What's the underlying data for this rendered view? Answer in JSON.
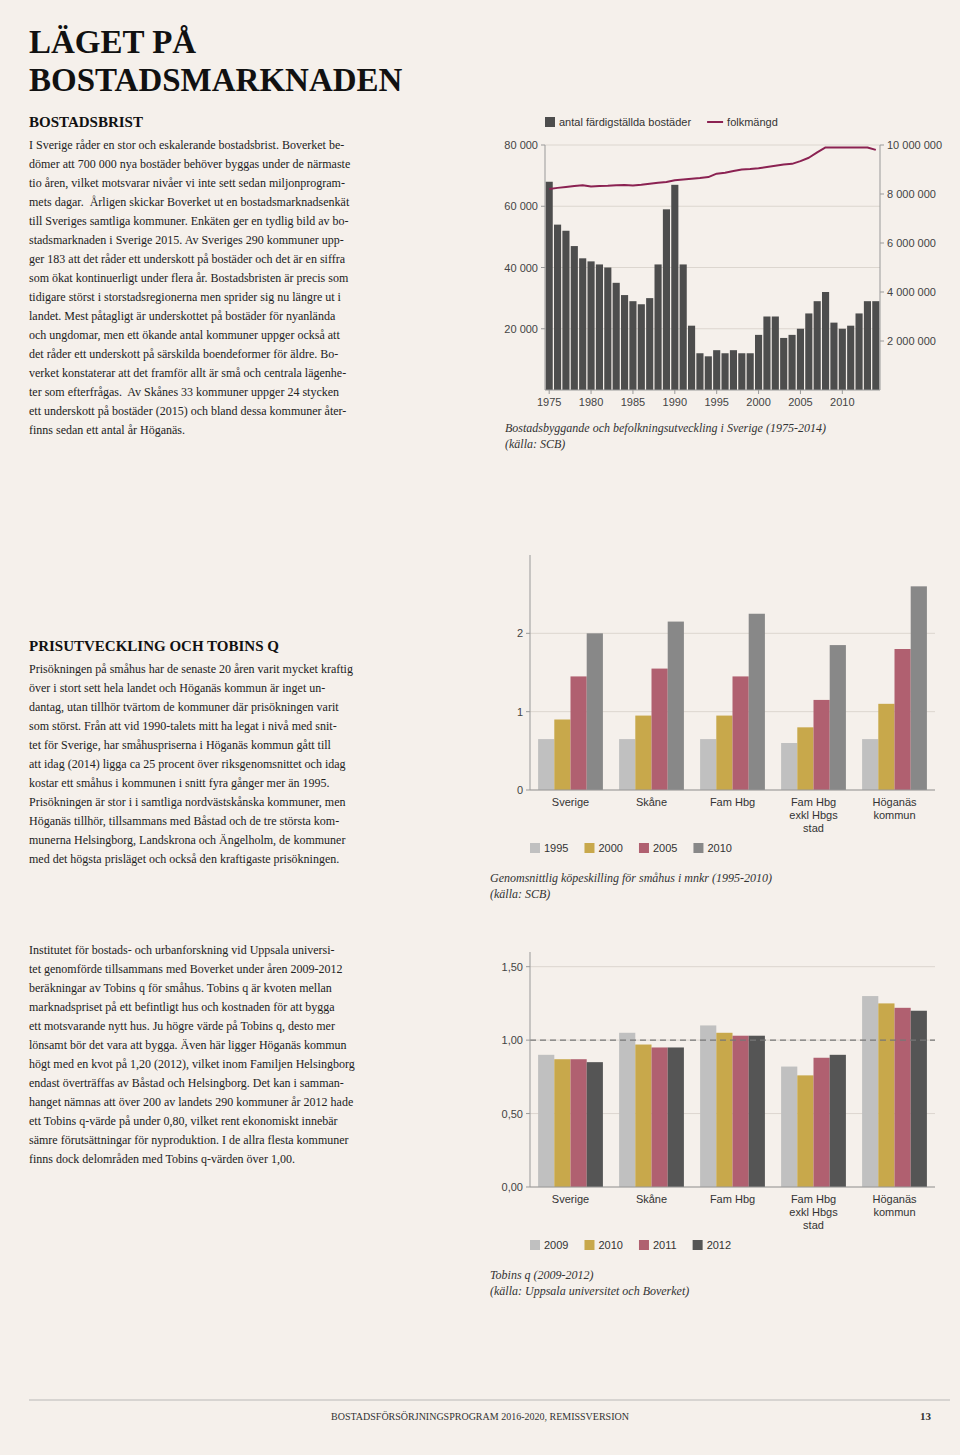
{
  "page": {
    "background": "#f5f0eb",
    "title": [
      "LÄGET PÅ",
      "BOSTADSMARKNADEN"
    ],
    "sections": [
      {
        "title": "BOSTADSBRIST",
        "text": "I Sverige råder en stor och eskalerande bostadsbrist. Boverket be-\ndömer att 700 000 nya bostäder behöver byggas under de närmaste\ntio åren, vilket motsvarar nivåer vi inte sett sedan miljonprogram-\nmets dagar.  Årligen skickar Boverket ut en bostadsmarknadsenkät\ntill Sveriges samtliga kommuner. Enkäten ger en tydlig bild av bo-\nstadsmarknaden i Sverige 2015. Av Sveriges 290 kommuner upp-\nger 183 att det råder ett underskott på bostäder och det är en siffra\nsom ökat kontinuerligt under flera år. Bostadsbristen är precis som\ntidigare störst i storstadsregionerna men sprider sig nu längre ut i\nlandet. Mest påtagligt är underskottet på bostäder för nyanlända\noch ungdomar, men ett ökande antal kommuner uppger också att\ndet råder ett underskott på särskilda boendeformer för äldre. Bo-\nverket konstaterar att det framför allt är små och centrala lägenhe-\nter som efterfrågas.  Av Skånes 33 kommuner uppger 24 stycken\nett underskott på bostäder (2015) och bland dessa kommuner åter-\nfinns sedan ett antal år Höganäs."
      },
      {
        "title": "PRISUTVECKLING OCH TOBINS Q",
        "text": "Prisökningen på småhus har de senaste 20 åren varit mycket kraftig\növer i stort sett hela landet och Höganäs kommun är inget un-\ndantag, utan tillhör tvärtom de kommuner där prisökningen varit\nsom störst. Från att vid 1990-talets mitt ha legat i nivå med snit-\ntet för Sverige, har småhuspriserna i Höganäs kommun gått till\natt idag (2014) ligga ca 25 procent över riksgenomsnittet och idag\nkostar ett småhus i kommunen i snitt fyra gånger mer än 1995.\nPrisökningen är stor i i samtliga nordvästskånska kommuner, men\nHöganäs tillhör, tillsammans med Båstad och de tre största kom-\nmunerna Helsingborg, Landskrona och Ängelholm, de kommuner\nmed det högsta prisläget och också den kraftigaste prisökningen."
      },
      {
        "text": "Institutet för bostads- och urbanforskning vid Uppsala universi-\ntet genomförde tillsammans med Boverket under åren 2009-2012\nberäkningar av Tobins q för småhus. Tobins q är kvoten mellan\nmarknadspriset på ett befintligt hus och kostnaden för att bygga\nett motsvarande nytt hus. Ju högre värde på Tobins q, desto mer\nlönsamt bör det vara att bygga. Även här ligger Höganäs kommun\nhögt med en kvot på 1,20 (2012), vilket inom Familjen Helsingborg\nendast överträffas av Båstad och Helsingborg. Det kan i samman-\nhanget nämnas att över 200 av landets 290 kommuner år 2012 hade\nett Tobins q-värde på under 0,80, vilket rent ekonomiskt innebär\nsämre förutsättningar för nyproduktion. I de allra flesta kommuner\nfinns dock delområden med Tobins q-värden över 1,00."
      }
    ],
    "footer": "BOSTADSFÖRSÖRJNINGSPROGRAM 2016-2020, REMISSVERSION",
    "page_number": "13"
  },
  "chart_data": [
    {
      "type": "bar",
      "title": "Bostadsbyggande och befolkningsutveckling i Sverige (1975-2014)",
      "subtitle": "(källa: SCB)",
      "x": [
        1975,
        1976,
        1977,
        1978,
        1979,
        1980,
        1981,
        1982,
        1983,
        1984,
        1985,
        1986,
        1987,
        1988,
        1989,
        1990,
        1991,
        1992,
        1993,
        1994,
        1995,
        1996,
        1997,
        1998,
        1999,
        2000,
        2001,
        2002,
        2003,
        2004,
        2005,
        2006,
        2007,
        2008,
        2009,
        2010,
        2011,
        2012,
        2013,
        2014
      ],
      "xlim": [
        1974.5,
        2014.5
      ],
      "xticks": [
        1975,
        1980,
        1985,
        1990,
        1995,
        2000,
        2005,
        2010
      ],
      "ylim": [
        0,
        80000
      ],
      "yticks": [
        {
          "value": 20000,
          "label": "20 000"
        },
        {
          "value": 40000,
          "label": "40 000"
        },
        {
          "value": 60000,
          "label": "60 000"
        },
        {
          "value": 80000,
          "label": "80 000"
        }
      ],
      "y2lim": [
        0,
        10000000
      ],
      "y2ticks": [
        {
          "value": 2000000,
          "label": "2 000 000"
        },
        {
          "value": 4000000,
          "label": "4 000 000"
        },
        {
          "value": 6000000,
          "label": "6 000 000"
        },
        {
          "value": 8000000,
          "label": "8 000 000"
        },
        {
          "value": 10000000,
          "label": "10 000 000"
        }
      ],
      "grid": true,
      "legend": "top",
      "series": [
        {
          "name": "antal färdigställda bostäder",
          "type": "bar",
          "color": "#4d4d4d",
          "values": [
            68000,
            54000,
            52000,
            47000,
            43000,
            42000,
            41000,
            40000,
            35000,
            31000,
            29000,
            28000,
            30000,
            41000,
            59000,
            67000,
            41000,
            21000,
            12000,
            11000,
            13000,
            12000,
            13000,
            12000,
            12000,
            18000,
            24000,
            24000,
            17000,
            18000,
            20000,
            25000,
            29000,
            32000,
            22000,
            20000,
            21000,
            25000,
            29000,
            29000
          ]
        },
        {
          "name": "folkmängd",
          "type": "line",
          "axis": "y2",
          "color": "#8b2252",
          "values": [
            8200000,
            8250000,
            8290000,
            8330000,
            8360000,
            8310000,
            8330000,
            8340000,
            8360000,
            8370000,
            8350000,
            8380000,
            8420000,
            8460000,
            8490000,
            8560000,
            8590000,
            8620000,
            8650000,
            8690000,
            8830000,
            8870000,
            8940000,
            9000000,
            9020000,
            9050000,
            9100000,
            9150000,
            9200000,
            9230000,
            9340000,
            9480000,
            9700000,
            9900000,
            9900000,
            9900000,
            9900000,
            9900000,
            9900000,
            9800000
          ]
        }
      ]
    },
    {
      "type": "bar",
      "title": "Genomsnittlig köpeskilling för småhus i mnkr (1995-2010)",
      "subtitle": "(källa: SCB)",
      "categories": [
        "Sverige",
        "Skåne",
        "Fam Hbg",
        "Fam Hbg\nexkl Hbgs\nstad",
        "Höganäs\nkommun"
      ],
      "ylim": [
        0,
        3
      ],
      "yticks": [
        0,
        1,
        2
      ],
      "grid": true,
      "legend": "bottom",
      "series": [
        {
          "name": "1995",
          "color": "#c0c0c0",
          "values": [
            0.65,
            0.65,
            0.65,
            0.6,
            0.65
          ]
        },
        {
          "name": "2000",
          "color": "#c8a84b",
          "values": [
            0.9,
            0.95,
            0.95,
            0.8,
            1.1
          ]
        },
        {
          "name": "2005",
          "color": "#b06070",
          "values": [
            1.45,
            1.55,
            1.45,
            1.15,
            1.8
          ]
        },
        {
          "name": "2010",
          "color": "#888888",
          "values": [
            2.0,
            2.15,
            2.25,
            1.85,
            2.6
          ]
        }
      ]
    },
    {
      "type": "bar",
      "title": "Tobins q (2009-2012)",
      "subtitle": "(källa: Uppsala universitet och Boverket)",
      "categories": [
        "Sverige",
        "Skåne",
        "Fam Hbg",
        "Fam Hbg\nexkl Hbgs\nstad",
        "Höganäs\nkommun"
      ],
      "ylim": [
        0,
        1.6
      ],
      "yticks": [
        {
          "value": 0,
          "label": "0,00"
        },
        {
          "value": 0.5,
          "label": "0,50"
        },
        {
          "value": 1,
          "label": "1,00"
        },
        {
          "value": 1.5,
          "label": "1,50"
        }
      ],
      "grid": true,
      "legend": "bottom",
      "reference_line": {
        "value": 1.0,
        "line_style": "dashed"
      },
      "series": [
        {
          "name": "2009",
          "color": "#c0c0c0",
          "values": [
            0.9,
            1.05,
            1.1,
            0.82,
            1.3
          ]
        },
        {
          "name": "2010",
          "color": "#c8a84b",
          "values": [
            0.87,
            0.97,
            1.05,
            0.76,
            1.25
          ]
        },
        {
          "name": "2011",
          "color": "#b06070",
          "values": [
            0.87,
            0.95,
            1.03,
            0.88,
            1.22
          ]
        },
        {
          "name": "2012",
          "color": "#555555",
          "values": [
            0.85,
            0.95,
            1.03,
            0.9,
            1.2
          ]
        }
      ]
    }
  ]
}
